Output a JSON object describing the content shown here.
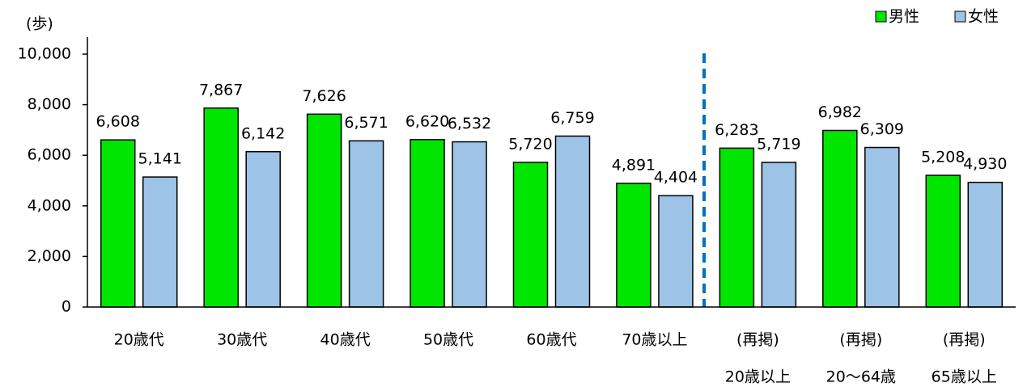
{
  "chart_data": {
    "type": "bar",
    "y_label": "(歩)",
    "categories": [
      "20歳代",
      "30歳代",
      "40歳代",
      "50歳代",
      "60歳代",
      "70歳以上",
      [
        "(再掲)",
        "20歳以上"
      ],
      [
        "(再掲)",
        "20〜64歳"
      ],
      [
        "(再掲)",
        "65歳以上"
      ]
    ],
    "series": [
      {
        "name": "男性",
        "color": "#00e600",
        "values": [
          6608,
          7867,
          7626,
          6620,
          5720,
          4891,
          6283,
          6982,
          5208
        ],
        "value_labels": [
          "6,608",
          "7,867",
          "7,626",
          "6,620",
          "5,720",
          "4,891",
          "6,283",
          "6,982",
          "5,208"
        ]
      },
      {
        "name": "女性",
        "color": "#9dc3e6",
        "values": [
          5141,
          6142,
          6571,
          6532,
          6759,
          4404,
          5719,
          6309,
          4930
        ],
        "value_labels": [
          "5,141",
          "6,142",
          "6,571",
          "6,532",
          "6,759",
          "4,404",
          "5,719",
          "6,309",
          "4,930"
        ]
      }
    ],
    "ylim": [
      0,
      10000
    ],
    "yticks": [
      0,
      {
        "value": 2000,
        "label": "2,000"
      },
      {
        "value": 4000,
        "label": "4,000"
      },
      {
        "value": 6000,
        "label": "6,000"
      },
      {
        "value": 8000,
        "label": "8,000"
      },
      {
        "value": 10000,
        "label": "10,000"
      }
    ],
    "grid": false,
    "legend": "top-right"
  }
}
